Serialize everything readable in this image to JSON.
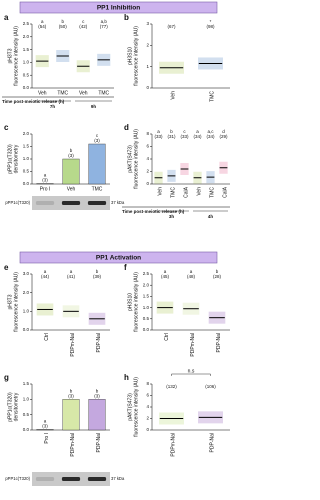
{
  "headers": [
    "PP1 Inhibition",
    "PP1 Activation"
  ],
  "chart_data": [
    {
      "panel": "a",
      "type": "dot",
      "ylabel": [
        "pH3T3",
        "fluorescence intensity (AU)"
      ],
      "categories": [
        "Veh",
        "TMC",
        "Veh",
        "TMC"
      ],
      "values": [
        1.05,
        1.25,
        0.85,
        1.1
      ],
      "colors": [
        "#a6c34c",
        "#4a7fc1",
        "#a6c34c",
        "#4a7fc1"
      ],
      "letters": [
        "a",
        "b",
        "c",
        "a,b"
      ],
      "counts": [
        "(54)",
        "(50)",
        "(42)",
        "(77)"
      ],
      "ylim": [
        0,
        2.5
      ],
      "yticks": [
        {
          "value": 0,
          "label": "0.0"
        },
        {
          "value": 0.5,
          "label": "0.5"
        },
        {
          "value": 1,
          "label": "1.0"
        },
        {
          "value": 1.5,
          "label": "1.5"
        },
        {
          "value": 2,
          "label": "2.0"
        },
        {
          "value": 2.5,
          "label": "2.5"
        }
      ],
      "time_label": "Time post-meiotic release (h)",
      "time_groups": [
        "7h",
        "9h"
      ]
    },
    {
      "panel": "b",
      "type": "dot",
      "ylabel": [
        "pH3S10",
        "fluorescence intensity (AU)"
      ],
      "categories": [
        "Veh",
        "TMC"
      ],
      "values": [
        0.95,
        1.15
      ],
      "colors": [
        "#a6c34c",
        "#4a7fc1"
      ],
      "letters": [
        null,
        "*"
      ],
      "counts": [
        "(67)",
        "(98)"
      ],
      "ylim": [
        0,
        3
      ],
      "yticks": [
        0,
        1,
        2,
        3
      ]
    },
    {
      "panel": "c",
      "type": "bar",
      "ylabel": [
        "pPP1c(T320)",
        "densitometry"
      ],
      "categories": [
        "Pro I",
        "Veh",
        "TMC"
      ],
      "values": [
        0.02,
        1.0,
        1.6
      ],
      "colors": [
        "#9e9e9e",
        "#b7d98b",
        "#8fb3e0"
      ],
      "letters": [
        "a",
        "b",
        "c"
      ],
      "counts": [
        "(3)",
        "(3)",
        "(3)"
      ],
      "ylim": [
        0,
        2
      ],
      "yticks": [
        {
          "value": 0,
          "label": "0.0"
        },
        {
          "value": 0.5,
          "label": "0.5"
        },
        {
          "value": 1,
          "label": "1.0"
        },
        {
          "value": 1.5,
          "label": "1.5"
        },
        {
          "value": 2,
          "label": "2.0"
        }
      ],
      "blot_label": "pPP1c(T320)",
      "blot_marker": "37 kDa"
    },
    {
      "panel": "d",
      "type": "dot",
      "ylabel": [
        "pAKT(S473)",
        "fluorescence intensity (AU)"
      ],
      "categories": [
        "Veh",
        "TMC",
        "CalA",
        "Veh",
        "TMC",
        "CalA"
      ],
      "values": [
        1.0,
        1.3,
        2.4,
        1.0,
        1.1,
        2.6
      ],
      "colors": [
        "#a6c34c",
        "#4a7fc1",
        "#e05a8a",
        "#a6c34c",
        "#4a7fc1",
        "#e05a8a"
      ],
      "letters": [
        "a",
        "b",
        "c",
        "a",
        "a,c",
        "d"
      ],
      "counts": [
        "(33)",
        "(31)",
        "(33)",
        "(34)",
        "(34)",
        "(29)"
      ],
      "ylim": [
        0,
        8
      ],
      "yticks": [
        0,
        2,
        4,
        6,
        8
      ],
      "time_label": "Time post-meiotic release (h)",
      "time_groups": [
        "3h",
        "4h"
      ]
    },
    {
      "panel": "e",
      "type": "dot",
      "ylabel": [
        "pH3T3",
        "fluorescence intensity (AU)"
      ],
      "categories": [
        "Ctrl",
        "PDPm-Nal",
        "PDP-Nal"
      ],
      "values": [
        1.1,
        1.0,
        0.6
      ],
      "colors": [
        "#a6c34c",
        "#c6dc8f",
        "#8a55b5"
      ],
      "letters": [
        "a",
        "a",
        "b"
      ],
      "counts": [
        "(44)",
        "(41)",
        "(39)"
      ],
      "ylim": [
        0,
        3
      ],
      "yticks": [
        {
          "value": 0,
          "label": "0.0"
        },
        {
          "value": 1,
          "label": "1.0"
        },
        {
          "value": 2,
          "label": "2.0"
        },
        {
          "value": 3,
          "label": "3.0"
        }
      ]
    },
    {
      "panel": "f",
      "type": "dot",
      "ylabel": [
        "pH3S10",
        "fluorescence intensity (AU)"
      ],
      "categories": [
        "Ctrl",
        "PDPm-Nal",
        "PDP-Nal"
      ],
      "values": [
        1.0,
        0.95,
        0.55
      ],
      "colors": [
        "#a6c34c",
        "#c6dc8f",
        "#8a55b5"
      ],
      "letters": [
        "a",
        "a",
        "b"
      ],
      "counts": [
        "(45)",
        "(48)",
        "(28)"
      ],
      "ylim": [
        0,
        2.5
      ],
      "yticks": [
        {
          "value": 0,
          "label": "0.0"
        },
        {
          "value": 0.5,
          "label": "0.5"
        },
        {
          "value": 1,
          "label": "1.0"
        },
        {
          "value": 1.5,
          "label": "1.5"
        },
        {
          "value": 2,
          "label": "2.0"
        },
        {
          "value": 2.5,
          "label": "2.5"
        }
      ]
    },
    {
      "panel": "g",
      "type": "bar",
      "ylabel": [
        "pPP1c(T320)",
        "densitometry"
      ],
      "categories": [
        "Pro I",
        "PDPm-Nal",
        "PDP-Nal"
      ],
      "values": [
        0.02,
        1.0,
        1.0
      ],
      "colors": [
        "#9e9e9e",
        "#d7e8a8",
        "#c4a8df"
      ],
      "letters": [
        "a",
        "b",
        "b"
      ],
      "counts": [
        "(3)",
        "(3)",
        "(3)"
      ],
      "ylim": [
        0,
        1.5
      ],
      "yticks": [
        {
          "value": 0,
          "label": "0.0"
        },
        {
          "value": 0.5,
          "label": "0.5"
        },
        {
          "value": 1,
          "label": "1.0"
        },
        {
          "value": 1.5,
          "label": "1.5"
        }
      ],
      "blot_label": "pPP1c(T320)",
      "blot_marker": "37 kDa"
    },
    {
      "panel": "h",
      "type": "dot",
      "ylabel": [
        "pAKT(S473)",
        "fluorescence intensity (AU)"
      ],
      "categories": [
        "PDPm-Nal",
        "PDP-Nal"
      ],
      "values": [
        2.0,
        2.2
      ],
      "colors": [
        "#b5d86a",
        "#8a55b5"
      ],
      "counts": [
        "(132)",
        "(106)"
      ],
      "comparison": "n.s",
      "ylim": [
        0,
        8
      ],
      "yticks": [
        0,
        2,
        4,
        6,
        8
      ]
    }
  ]
}
